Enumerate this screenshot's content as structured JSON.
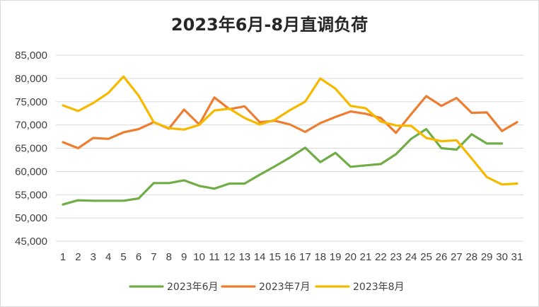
{
  "chart_data": {
    "type": "line",
    "title": "2023年6月-8月直调负荷",
    "xlabel": "",
    "ylabel": "",
    "categories": [
      "1",
      "2",
      "3",
      "4",
      "5",
      "6",
      "7",
      "8",
      "9",
      "10",
      "11",
      "12",
      "13",
      "14",
      "15",
      "16",
      "17",
      "18",
      "19",
      "20",
      "21",
      "22",
      "23",
      "24",
      "25",
      "26",
      "27",
      "28",
      "29",
      "30",
      "31"
    ],
    "ylim": [
      45000,
      85000
    ],
    "yticks": [
      45000,
      50000,
      55000,
      60000,
      65000,
      70000,
      75000,
      80000,
      85000
    ],
    "ytick_labels": [
      "45,000",
      "50,000",
      "55,000",
      "60,000",
      "65,000",
      "70,000",
      "75,000",
      "80,000",
      "85,000"
    ],
    "grid": "horizontal",
    "legend_position": "bottom",
    "series": [
      {
        "name": "2023年6月",
        "color": "#70ad47",
        "values": [
          52900,
          53800,
          53700,
          53700,
          53700,
          54200,
          57500,
          57500,
          58100,
          56900,
          56300,
          57400,
          57400,
          59300,
          61100,
          63000,
          65100,
          62000,
          64000,
          61000,
          61300,
          61600,
          63700,
          67000,
          69100,
          65000,
          64700,
          68000,
          66000,
          66000,
          null
        ]
      },
      {
        "name": "2023年7月",
        "color": "#ed7d31",
        "values": [
          66300,
          65000,
          67200,
          67000,
          68400,
          69100,
          70600,
          69200,
          73300,
          70100,
          75900,
          73400,
          74000,
          70600,
          70900,
          70100,
          68500,
          70400,
          71700,
          72900,
          72400,
          71500,
          68300,
          72300,
          76200,
          74100,
          75800,
          72600,
          72700,
          68700,
          70600
        ]
      },
      {
        "name": "2023年8月",
        "color": "#f5b900",
        "values": [
          74200,
          73000,
          74700,
          76900,
          80400,
          76300,
          70600,
          69300,
          69000,
          70000,
          73100,
          73500,
          71500,
          70100,
          71100,
          73200,
          75000,
          80000,
          77800,
          74100,
          73600,
          70700,
          69900,
          69800,
          67200,
          66500,
          66700,
          62800,
          58800,
          57200,
          57400
        ]
      }
    ]
  }
}
